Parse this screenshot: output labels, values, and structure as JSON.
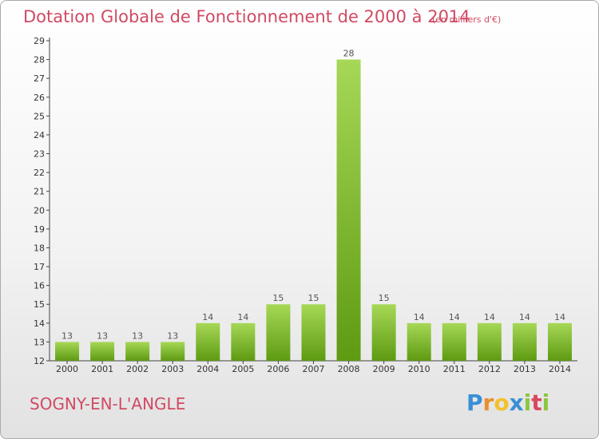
{
  "header": {
    "title": "Dotation Globale de Fonctionnement de 2000 à 2014",
    "unit": "(en milliers d'€)"
  },
  "footer": {
    "commune": "SOGNY-EN-L'ANGLE",
    "logo": "Proxiti"
  },
  "colors": {
    "accent": "#d04a63",
    "bar_light": "#a6d856",
    "bar_dark": "#5e9a12"
  },
  "chart_data": {
    "type": "bar",
    "title": "Dotation Globale de Fonctionnement de 2000 à 2014",
    "categories": [
      "2000",
      "2001",
      "2002",
      "2003",
      "2004",
      "2005",
      "2006",
      "2007",
      "2008",
      "2009",
      "2010",
      "2011",
      "2012",
      "2013",
      "2014"
    ],
    "values": [
      13,
      13,
      13,
      13,
      14,
      14,
      15,
      15,
      28,
      15,
      14,
      14,
      14,
      14,
      14
    ],
    "ylim": [
      12,
      29
    ],
    "yticks": [
      12,
      13,
      14,
      15,
      16,
      17,
      18,
      19,
      20,
      21,
      22,
      23,
      24,
      25,
      26,
      27,
      28,
      29
    ],
    "grid": false,
    "legend": "none"
  }
}
